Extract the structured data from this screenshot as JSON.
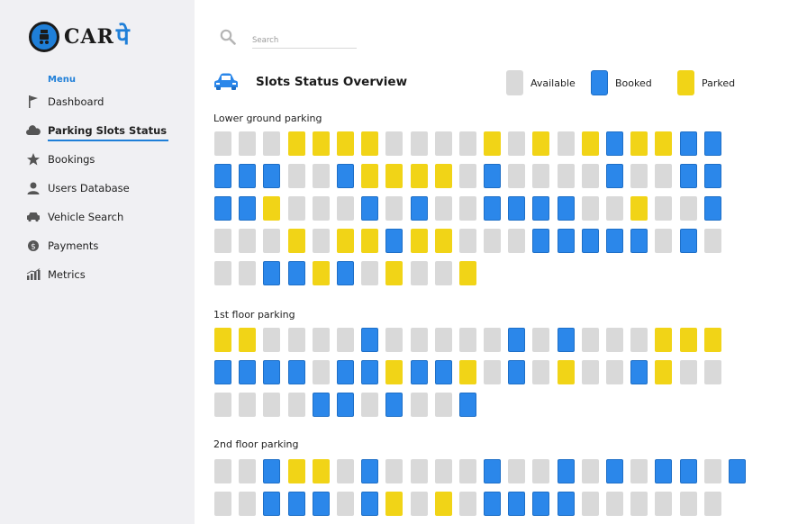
{
  "brand": {
    "name": "CAR",
    "accent": "पे",
    "color": "#1f7fd8"
  },
  "search": {
    "placeholder": "Search"
  },
  "sidebar": {
    "menu_label": "Menu",
    "items": [
      {
        "label": "Dashboard",
        "icon": "flag-icon",
        "active": false
      },
      {
        "label": "Parking Slots Status",
        "icon": "cloud-icon",
        "active": true
      },
      {
        "label": "Bookings",
        "icon": "star-icon",
        "active": false
      },
      {
        "label": "Users Database",
        "icon": "user-icon",
        "active": false
      },
      {
        "label": "Vehicle Search",
        "icon": "car-icon",
        "active": false
      },
      {
        "label": "Payments",
        "icon": "money-icon",
        "active": false
      },
      {
        "label": "Metrics",
        "icon": "bar-chart-icon",
        "active": false
      }
    ]
  },
  "header": {
    "title": "Slots Status Overview",
    "icon": "car-icon"
  },
  "legend": [
    {
      "label": "Available",
      "status": "available",
      "color": "#d9d9d9"
    },
    {
      "label": "Booked",
      "status": "booked",
      "color": "#2b87ea"
    },
    {
      "label": "Parked",
      "status": "parked",
      "color": "#f1d417"
    }
  ],
  "sections": [
    {
      "title": "Lower ground parking",
      "rows": [
        "AAAPPPPAAAAPAPAPBPPBB",
        "BBBAABPPPPABAAAABAABB",
        "BBPAAABABAABBBBAAPAAB",
        "AAAPAPPBPPAAABBBBBABA",
        "AABBPBAPAAP"
      ]
    },
    {
      "title": "1st floor parking",
      "rows": [
        "PPAAAABAAAAABABAAAPPP",
        "BBBBABBPBBPABAPAABPAA",
        "AAAABBABAAB"
      ]
    },
    {
      "title": "2nd floor parking",
      "rows": [
        "AABPPABAAAABAABABABBAB",
        "AABBBABPAPABBBBAAAAAA"
      ]
    }
  ]
}
